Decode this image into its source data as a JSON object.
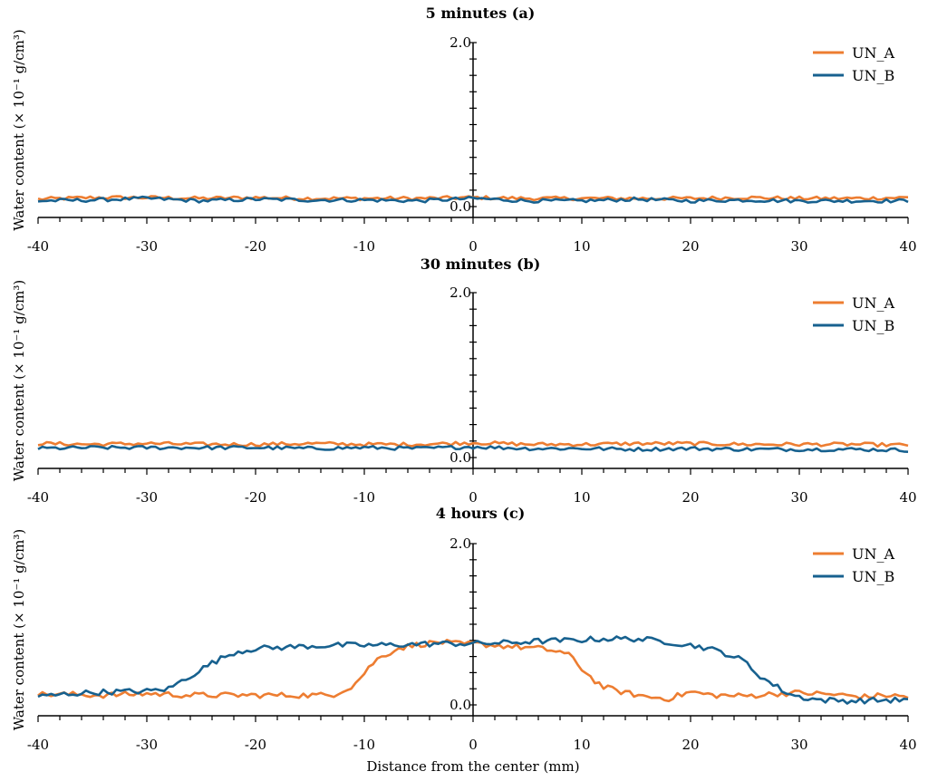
{
  "colors": {
    "UN_A": "#ED7D31",
    "UN_B": "#17618F"
  },
  "xlabel": "Distance from the center (mm)",
  "chart_data": [
    {
      "type": "line",
      "title": "5 minutes (a)",
      "ylabel": "Water content (× 10⁻¹ g/cm³)",
      "xlim": [
        -40,
        40
      ],
      "ylim": [
        0,
        2
      ],
      "xticks": [
        -40,
        -30,
        -20,
        -10,
        0,
        10,
        20,
        30,
        40
      ],
      "yticks_labeled": [
        0.0,
        2.0
      ],
      "ytick_labels": [
        "0.0",
        "2.0"
      ],
      "legend": "top-right",
      "series": [
        {
          "name": "UN_A",
          "x": [
            -40,
            -35,
            -30,
            -25,
            -20,
            -15,
            -10,
            -5,
            0,
            5,
            10,
            15,
            20,
            25,
            30,
            35,
            40
          ],
          "values": [
            0.09,
            0.11,
            0.11,
            0.1,
            0.11,
            0.1,
            0.1,
            0.1,
            0.11,
            0.1,
            0.1,
            0.1,
            0.1,
            0.11,
            0.1,
            0.1,
            0.11
          ]
        },
        {
          "name": "UN_B",
          "x": [
            -40,
            -35,
            -30,
            -25,
            -20,
            -15,
            -10,
            -5,
            0,
            5,
            10,
            15,
            20,
            25,
            30,
            35,
            40
          ],
          "values": [
            0.07,
            0.08,
            0.1,
            0.07,
            0.09,
            0.08,
            0.08,
            0.07,
            0.1,
            0.07,
            0.07,
            0.09,
            0.07,
            0.08,
            0.07,
            0.07,
            0.07
          ]
        }
      ]
    },
    {
      "type": "line",
      "title": "30 minutes (b)",
      "ylabel": "Water content (× 10⁻¹ g/cm³)",
      "xlim": [
        -40,
        40
      ],
      "ylim": [
        0,
        2
      ],
      "xticks": [
        -40,
        -30,
        -20,
        -10,
        0,
        10,
        20,
        30,
        40
      ],
      "yticks_labeled": [
        0.0,
        2.0
      ],
      "ytick_labels": [
        "0.0",
        "2.0"
      ],
      "legend": "top-right",
      "series": [
        {
          "name": "UN_A",
          "x": [
            -40,
            -35,
            -30,
            -25,
            -20,
            -15,
            -10,
            -5,
            0,
            5,
            10,
            15,
            20,
            25,
            30,
            35,
            40
          ],
          "values": [
            0.17,
            0.16,
            0.17,
            0.16,
            0.16,
            0.17,
            0.16,
            0.16,
            0.18,
            0.16,
            0.16,
            0.17,
            0.17,
            0.16,
            0.16,
            0.16,
            0.15
          ]
        },
        {
          "name": "UN_B",
          "x": [
            -40,
            -35,
            -30,
            -25,
            -20,
            -15,
            -10,
            -5,
            0,
            5,
            10,
            15,
            20,
            25,
            30,
            35,
            40
          ],
          "values": [
            0.11,
            0.12,
            0.12,
            0.12,
            0.12,
            0.11,
            0.12,
            0.11,
            0.13,
            0.11,
            0.11,
            0.1,
            0.11,
            0.1,
            0.1,
            0.1,
            0.09
          ]
        }
      ]
    },
    {
      "type": "line",
      "title": "4 hours (c)",
      "ylabel": "Water content (× 10⁻¹ g/cm³)",
      "xlim": [
        -40,
        40
      ],
      "ylim": [
        0,
        2
      ],
      "xticks": [
        -40,
        -30,
        -20,
        -10,
        0,
        10,
        20,
        30,
        40
      ],
      "yticks_labeled": [
        0.0,
        2.0
      ],
      "ytick_labels": [
        "0.0",
        "2.0"
      ],
      "legend": "top-right",
      "series": [
        {
          "name": "UN_A",
          "x": [
            -40,
            -37,
            -34,
            -30,
            -26,
            -22,
            -18,
            -15,
            -13,
            -11,
            -9,
            -7,
            -5,
            -3,
            -1,
            0,
            2,
            4,
            6,
            8,
            9,
            10,
            11,
            12,
            14,
            16,
            18,
            20,
            22,
            25,
            28,
            30,
            33,
            36,
            38,
            40
          ],
          "values": [
            0.13,
            0.13,
            0.12,
            0.14,
            0.12,
            0.12,
            0.12,
            0.12,
            0.12,
            0.24,
            0.55,
            0.7,
            0.75,
            0.78,
            0.75,
            0.76,
            0.74,
            0.72,
            0.7,
            0.66,
            0.6,
            0.45,
            0.32,
            0.22,
            0.15,
            0.1,
            0.08,
            0.16,
            0.12,
            0.11,
            0.14,
            0.15,
            0.13,
            0.1,
            0.12,
            0.1
          ]
        },
        {
          "name": "UN_B",
          "x": [
            -40,
            -37,
            -34,
            -30,
            -28,
            -26,
            -24,
            -22,
            -20,
            -18,
            -15,
            -12,
            -9,
            -6,
            -3,
            0,
            3,
            6,
            9,
            12,
            15,
            18,
            21,
            23,
            25,
            26,
            27,
            28,
            29,
            30,
            32,
            35,
            38,
            40
          ],
          "values": [
            0.1,
            0.14,
            0.16,
            0.17,
            0.2,
            0.36,
            0.52,
            0.65,
            0.7,
            0.71,
            0.73,
            0.74,
            0.74,
            0.75,
            0.76,
            0.76,
            0.77,
            0.79,
            0.8,
            0.82,
            0.82,
            0.78,
            0.72,
            0.65,
            0.54,
            0.4,
            0.3,
            0.22,
            0.14,
            0.1,
            0.06,
            0.05,
            0.06,
            0.06
          ]
        }
      ]
    }
  ]
}
